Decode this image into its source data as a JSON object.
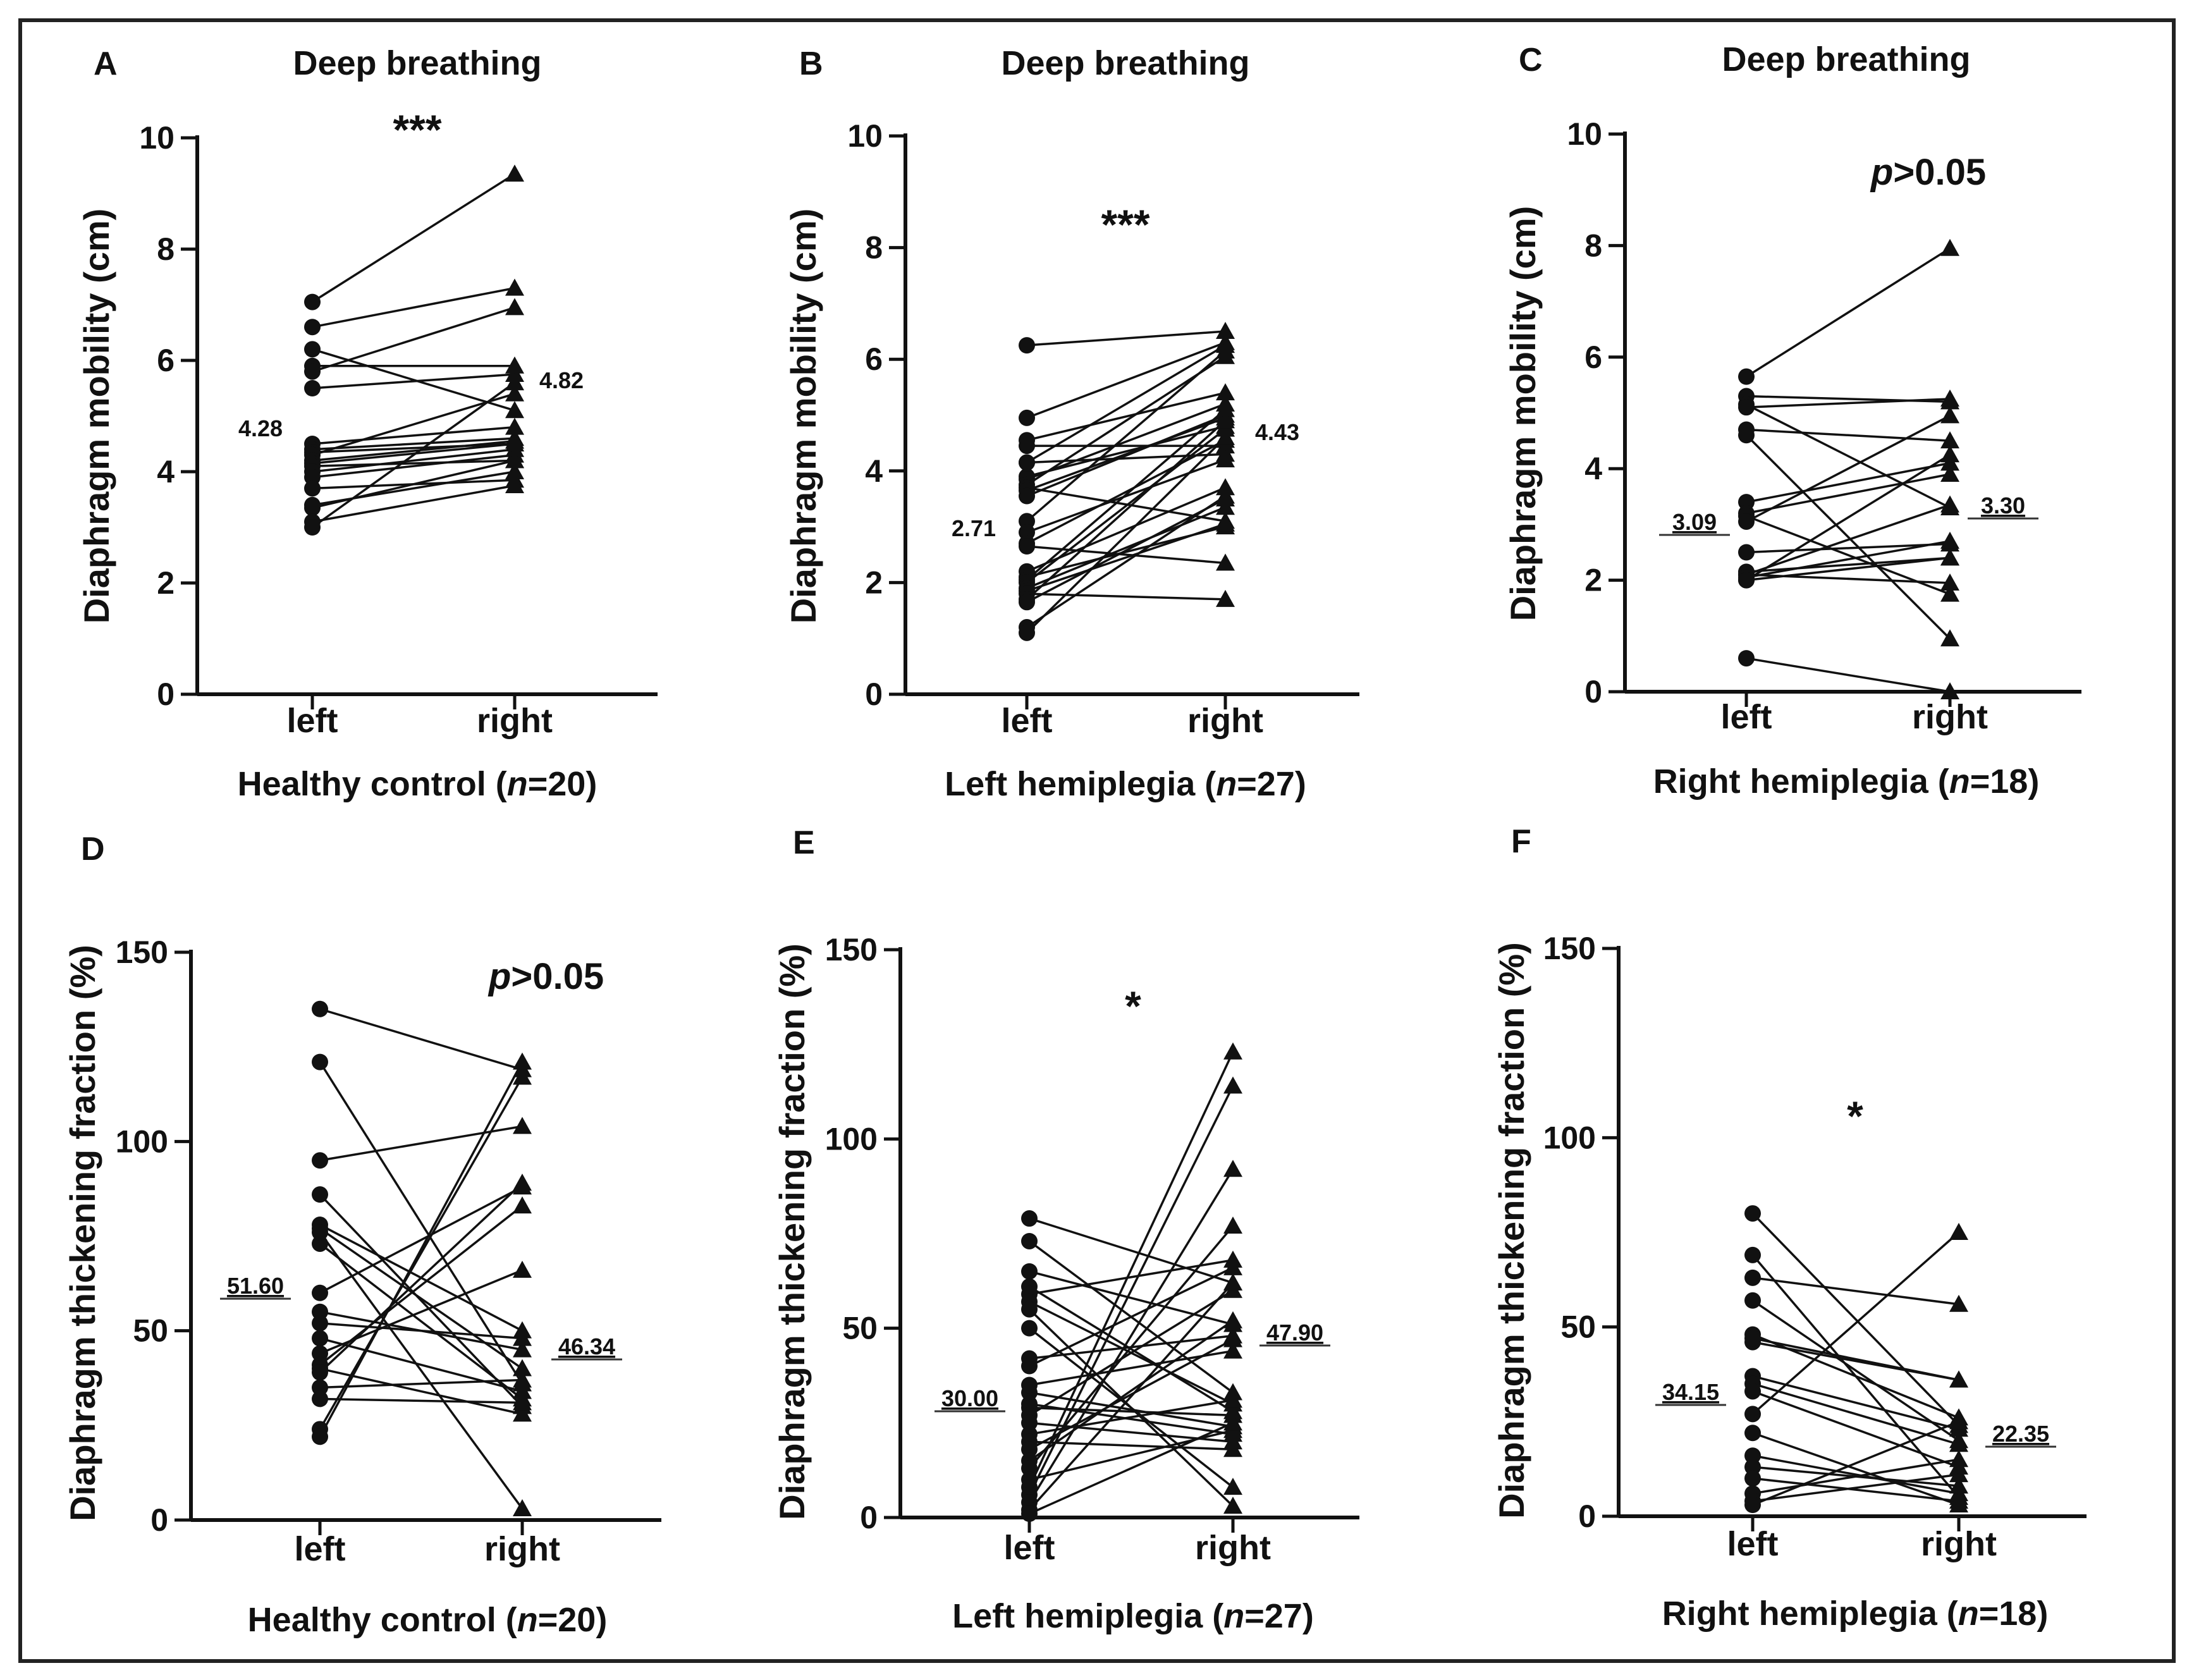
{
  "figure": {
    "border_color": "#222222",
    "mark_color": "#111111"
  },
  "chart_data": [
    {
      "id": "A",
      "type": "scatter",
      "paired": true,
      "panel_label": "A",
      "title": "Deep breathing",
      "ylabel": "Diaphragm mobility (cm)",
      "ylim": [
        0,
        10
      ],
      "yticks": [
        "0",
        "2",
        "4",
        "6",
        "8",
        "10"
      ],
      "categories": [
        "left",
        "right"
      ],
      "group": {
        "prefix": "Healthy control (",
        "n": "n",
        "suffix": "=20)"
      },
      "significance": {
        "text": "***",
        "italic_p": false
      },
      "means": {
        "left": "4.28",
        "right": "4.82"
      },
      "series": [
        {
          "name": "left",
          "values": [
            7.05,
            6.6,
            6.2,
            5.9,
            5.8,
            5.5,
            4.5,
            4.4,
            4.35,
            4.3,
            4.2,
            4.15,
            4.1,
            4.0,
            3.9,
            3.7,
            3.4,
            3.35,
            3.1,
            3.0
          ]
        },
        {
          "name": "right",
          "values": [
            9.35,
            7.3,
            5.1,
            5.9,
            6.95,
            5.75,
            4.8,
            4.6,
            4.5,
            5.4,
            4.55,
            4.5,
            4.2,
            4.4,
            4.3,
            3.85,
            4.0,
            4.2,
            3.75,
            5.6
          ]
        }
      ]
    },
    {
      "id": "B",
      "type": "scatter",
      "paired": true,
      "panel_label": "B",
      "title": "Deep breathing",
      "ylabel": "Diaphragm mobility (cm)",
      "ylim": [
        0,
        10
      ],
      "yticks": [
        "0",
        "2",
        "4",
        "6",
        "8",
        "10"
      ],
      "categories": [
        "left",
        "right"
      ],
      "group": {
        "prefix": "Left hemiplegia (",
        "n": "n",
        "suffix": "=27)"
      },
      "significance": {
        "text": "***",
        "italic_p": false
      },
      "means": {
        "left": "2.71",
        "right": "4.43"
      },
      "series": [
        {
          "name": "left",
          "values": [
            6.25,
            4.95,
            4.55,
            4.45,
            4.15,
            4.15,
            3.9,
            3.85,
            3.75,
            3.7,
            3.65,
            3.55,
            3.1,
            2.9,
            2.7,
            2.65,
            2.2,
            2.1,
            2.05,
            2.0,
            1.9,
            1.85,
            1.8,
            1.7,
            1.65,
            1.2,
            1.1
          ]
        },
        {
          "name": "right",
          "values": [
            6.5,
            6.3,
            5.4,
            4.45,
            6.25,
            4.3,
            4.8,
            5.2,
            6.05,
            3.1,
            4.95,
            5.0,
            6.15,
            4.2,
            4.55,
            2.35,
            3.7,
            3.0,
            5.1,
            4.75,
            3.35,
            3.05,
            1.7,
            4.9,
            3.5,
            3.55,
            4.6
          ]
        }
      ]
    },
    {
      "id": "C",
      "type": "scatter",
      "paired": true,
      "panel_label": "C",
      "title": "Deep breathing",
      "ylabel": "Diaphragm mobility (cm)",
      "ylim": [
        0,
        10
      ],
      "yticks": [
        "0",
        "2",
        "4",
        "6",
        "8",
        "10"
      ],
      "categories": [
        "left",
        "right"
      ],
      "group": {
        "prefix": "Right hemiplegia (",
        "n": "n",
        "suffix": "=18)"
      },
      "significance": {
        "text": ">0.05",
        "italic_p": true,
        "p": "p"
      },
      "means": {
        "left": "3.09",
        "right": "3.30"
      },
      "series": [
        {
          "name": "left",
          "values": [
            5.65,
            5.3,
            5.15,
            5.1,
            4.7,
            4.6,
            3.4,
            3.2,
            3.15,
            3.05,
            2.5,
            2.15,
            2.1,
            2.1,
            2.05,
            2.0,
            2.0,
            0.6
          ]
        },
        {
          "name": "right",
          "values": [
            7.95,
            5.2,
            3.3,
            5.25,
            4.5,
            0.95,
            4.1,
            3.9,
            1.75,
            4.95,
            2.65,
            2.4,
            1.95,
            3.35,
            2.7,
            4.25,
            2.4,
            0.0
          ]
        }
      ]
    },
    {
      "id": "D",
      "type": "scatter",
      "paired": true,
      "panel_label": "D",
      "title": "",
      "ylabel": "Diaphragm thickening fraction (%)",
      "ylim": [
        0,
        150
      ],
      "yticks": [
        "0",
        "50",
        "100",
        "150"
      ],
      "categories": [
        "left",
        "right"
      ],
      "group": {
        "prefix": "Healthy control (",
        "n": "n",
        "suffix": "=20)"
      },
      "significance": {
        "text": ">0.05",
        "italic_p": true,
        "p": "p"
      },
      "means": {
        "left": "51.60",
        "right": "46.34"
      },
      "series": [
        {
          "name": "left",
          "values": [
            135,
            121,
            95,
            86,
            78,
            77,
            73,
            60,
            55,
            52,
            48,
            44,
            41,
            40,
            39,
            35,
            32,
            24,
            22,
            76
          ]
        },
        {
          "name": "right",
          "values": [
            119,
            36,
            104,
            30,
            50,
            40,
            32,
            88,
            45,
            48,
            34,
            66,
            83,
            28,
            89,
            37,
            31,
            117,
            121,
            3
          ]
        }
      ]
    },
    {
      "id": "E",
      "type": "scatter",
      "paired": true,
      "panel_label": "E",
      "title": "",
      "ylabel": "Diaphragm thickening fraction (%)",
      "ylim": [
        0,
        150
      ],
      "yticks": [
        "0",
        "50",
        "100",
        "150"
      ],
      "categories": [
        "left",
        "right"
      ],
      "group": {
        "prefix": "Left hemiplegia (",
        "n": "n",
        "suffix": "=27)"
      },
      "significance": {
        "text": "*",
        "italic_p": false
      },
      "means": {
        "left": "30.00",
        "right": "47.90"
      },
      "series": [
        {
          "name": "left",
          "values": [
            79,
            73,
            65,
            61,
            59,
            57,
            50,
            42,
            40,
            33,
            30,
            29,
            27,
            25,
            22,
            20,
            18,
            15,
            13,
            10,
            8,
            6,
            4,
            2,
            1,
            55,
            35
          ]
        },
        {
          "name": "right",
          "values": [
            62,
            33,
            51,
            28,
            68,
            30,
            8,
            48,
            66,
            24,
            22,
            27,
            60,
            20,
            31,
            18,
            47,
            52,
            77,
            23,
            123,
            114,
            92,
            62,
            25,
            3,
            44
          ]
        }
      ]
    },
    {
      "id": "F",
      "type": "scatter",
      "paired": true,
      "panel_label": "F",
      "title": "",
      "ylabel": "Diaphragm thickening fraction (%)",
      "ylim": [
        0,
        150
      ],
      "yticks": [
        "0",
        "50",
        "100",
        "150"
      ],
      "categories": [
        "left",
        "right"
      ],
      "group": {
        "prefix": "Right hemiplegia (",
        "n": "n",
        "suffix": "=18)"
      },
      "significance": {
        "text": "*",
        "italic_p": false
      },
      "means": {
        "left": "34.15",
        "right": "22.35"
      },
      "series": [
        {
          "name": "left",
          "values": [
            80,
            69,
            63,
            57,
            48,
            46,
            37,
            35,
            33,
            27,
            22,
            16,
            13,
            10,
            6,
            4,
            3,
            47
          ]
        },
        {
          "name": "right",
          "values": [
            24,
            5,
            56,
            20,
            26,
            36,
            23,
            19,
            13,
            75,
            3,
            6,
            8,
            4,
            15,
            11,
            25,
            36
          ]
        }
      ]
    }
  ]
}
